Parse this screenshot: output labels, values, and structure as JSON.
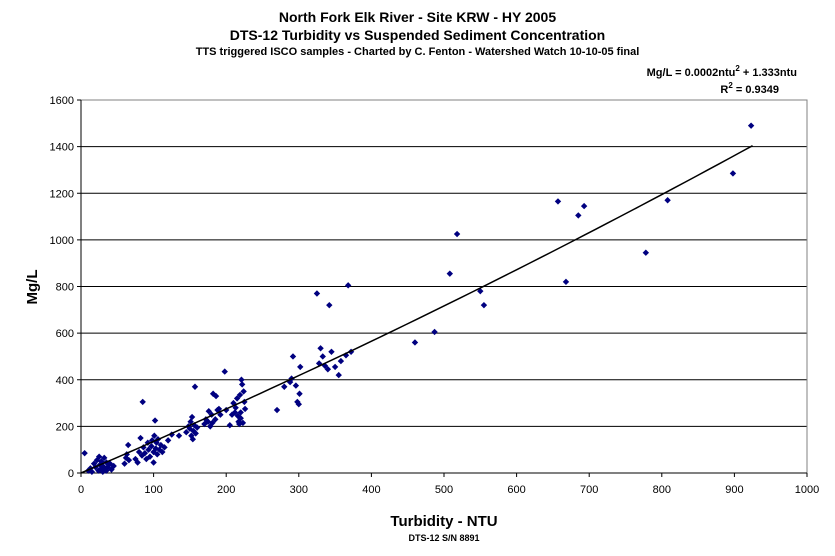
{
  "chart_data": {
    "type": "scatter",
    "title": "North Fork Elk River - Site KRW - HY 2005",
    "subtitle": "DTS-12 Turbidity vs Suspended Sediment Concentration",
    "caption": "TTS triggered ISCO samples - Charted by C. Fenton - Watershed Watch 10-10-05 final",
    "xlabel": "Turbidity - NTU",
    "xsublabel": "DTS-12 S/N 8891",
    "ylabel": "Mg/L",
    "xlim": [
      0,
      1000
    ],
    "ylim": [
      0,
      1600
    ],
    "xticks": [
      0,
      100,
      200,
      300,
      400,
      500,
      600,
      700,
      800,
      900,
      1000
    ],
    "yticks": [
      0,
      200,
      400,
      600,
      800,
      1000,
      1200,
      1400,
      1600
    ],
    "grid": "horizontal",
    "point_color": "#000080",
    "trendline_color": "#000000",
    "trendline": {
      "equation_prefix": "Mg/L = 0.0002ntu",
      "equation_exp": "2",
      "equation_suffix": " + 1.333ntu",
      "r2_prefix": "R",
      "r2_exp": "2",
      "r2_suffix": " = 0.9349",
      "a": 0.0002,
      "b": 1.333,
      "x_range": [
        0,
        925
      ]
    },
    "points": [
      [
        5,
        85
      ],
      [
        10,
        10
      ],
      [
        13,
        20
      ],
      [
        15,
        5
      ],
      [
        18,
        40
      ],
      [
        20,
        25
      ],
      [
        22,
        55
      ],
      [
        24,
        10
      ],
      [
        25,
        70
      ],
      [
        26,
        35
      ],
      [
        27,
        15
      ],
      [
        28,
        50
      ],
      [
        30,
        5
      ],
      [
        30,
        30
      ],
      [
        32,
        65
      ],
      [
        33,
        20
      ],
      [
        35,
        45
      ],
      [
        35,
        10
      ],
      [
        37,
        25
      ],
      [
        40,
        40
      ],
      [
        42,
        15
      ],
      [
        45,
        30
      ],
      [
        60,
        40
      ],
      [
        62,
        65
      ],
      [
        63,
        80
      ],
      [
        65,
        120
      ],
      [
        66,
        55
      ],
      [
        75,
        60
      ],
      [
        78,
        45
      ],
      [
        80,
        90
      ],
      [
        82,
        150
      ],
      [
        84,
        75
      ],
      [
        85,
        305
      ],
      [
        86,
        110
      ],
      [
        88,
        85
      ],
      [
        90,
        60
      ],
      [
        92,
        130
      ],
      [
        93,
        100
      ],
      [
        95,
        70
      ],
      [
        97,
        115
      ],
      [
        98,
        140
      ],
      [
        100,
        45
      ],
      [
        100,
        90
      ],
      [
        101,
        160
      ],
      [
        102,
        225
      ],
      [
        103,
        105
      ],
      [
        104,
        130
      ],
      [
        105,
        80
      ],
      [
        106,
        145
      ],
      [
        108,
        100
      ],
      [
        110,
        120
      ],
      [
        112,
        90
      ],
      [
        115,
        110
      ],
      [
        120,
        140
      ],
      [
        125,
        165
      ],
      [
        135,
        160
      ],
      [
        145,
        175
      ],
      [
        148,
        200
      ],
      [
        150,
        190
      ],
      [
        151,
        220
      ],
      [
        152,
        160
      ],
      [
        153,
        240
      ],
      [
        154,
        145
      ],
      [
        155,
        180
      ],
      [
        156,
        205
      ],
      [
        157,
        370
      ],
      [
        158,
        170
      ],
      [
        160,
        195
      ],
      [
        170,
        210
      ],
      [
        172,
        230
      ],
      [
        175,
        220
      ],
      [
        176,
        265
      ],
      [
        178,
        200
      ],
      [
        180,
        250
      ],
      [
        181,
        215
      ],
      [
        182,
        340
      ],
      [
        185,
        230
      ],
      [
        186,
        330
      ],
      [
        188,
        270
      ],
      [
        190,
        275
      ],
      [
        192,
        250
      ],
      [
        198,
        435
      ],
      [
        200,
        270
      ],
      [
        205,
        205
      ],
      [
        208,
        250
      ],
      [
        210,
        300
      ],
      [
        212,
        260
      ],
      [
        213,
        280
      ],
      [
        215,
        320
      ],
      [
        216,
        245
      ],
      [
        217,
        220
      ],
      [
        218,
        210
      ],
      [
        219,
        335
      ],
      [
        220,
        260
      ],
      [
        220,
        235
      ],
      [
        221,
        400
      ],
      [
        222,
        380
      ],
      [
        223,
        215
      ],
      [
        224,
        350
      ],
      [
        225,
        305
      ],
      [
        226,
        275
      ],
      [
        270,
        270
      ],
      [
        280,
        370
      ],
      [
        288,
        390
      ],
      [
        290,
        405
      ],
      [
        292,
        500
      ],
      [
        296,
        375
      ],
      [
        298,
        305
      ],
      [
        300,
        295
      ],
      [
        301,
        340
      ],
      [
        302,
        455
      ],
      [
        325,
        770
      ],
      [
        328,
        470
      ],
      [
        330,
        535
      ],
      [
        333,
        500
      ],
      [
        336,
        460
      ],
      [
        340,
        445
      ],
      [
        342,
        720
      ],
      [
        345,
        520
      ],
      [
        350,
        455
      ],
      [
        355,
        420
      ],
      [
        358,
        480
      ],
      [
        365,
        505
      ],
      [
        368,
        805
      ],
      [
        372,
        520
      ],
      [
        460,
        560
      ],
      [
        487,
        605
      ],
      [
        508,
        855
      ],
      [
        518,
        1025
      ],
      [
        550,
        780
      ],
      [
        555,
        720
      ],
      [
        657,
        1165
      ],
      [
        668,
        820
      ],
      [
        685,
        1105
      ],
      [
        693,
        1145
      ],
      [
        778,
        945
      ],
      [
        808,
        1170
      ],
      [
        898,
        1285
      ],
      [
        923,
        1490
      ]
    ]
  }
}
